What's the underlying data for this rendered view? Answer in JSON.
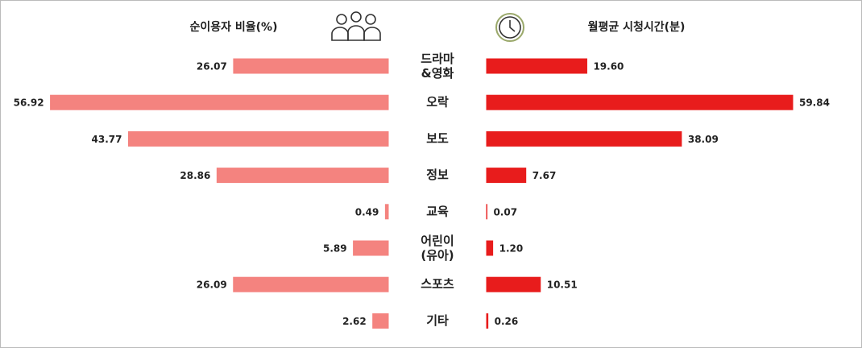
{
  "chart_data": [
    {
      "type": "bar",
      "orientation": "horizontal",
      "title": "순이용자 비율(%)",
      "categories": [
        "드라마\n&영화",
        "오락",
        "보도",
        "정보",
        "교육",
        "어린이\n(유아)",
        "스포츠",
        "기타"
      ],
      "values": [
        26.07,
        56.92,
        43.77,
        28.86,
        0.49,
        5.89,
        26.09,
        2.62
      ],
      "color": "#f4837f",
      "xlim": [
        0,
        57
      ]
    },
    {
      "type": "bar",
      "orientation": "horizontal",
      "title": "월평균 시청시간(분)",
      "values": [
        19.6,
        59.84,
        38.09,
        7.67,
        0.07,
        1.2,
        10.51,
        0.26
      ],
      "value_labels": [
        "19.60",
        "59.84",
        "38.09",
        "7.67",
        "0.07",
        "1.20",
        "10.51",
        "0.26"
      ],
      "color": "#e81c1c",
      "xlim": [
        0,
        60
      ]
    }
  ]
}
